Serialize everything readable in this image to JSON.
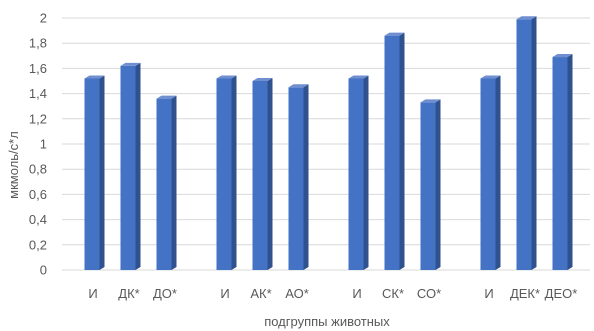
{
  "chart_data": {
    "type": "bar",
    "style": "3d-column",
    "xlabel": "подгруппы животных",
    "ylabel": "мкмоль/с*л",
    "ylim": [
      0,
      2
    ],
    "ytick_step": 0.2,
    "yticks": [
      "0",
      "0,2",
      "0,4",
      "0,6",
      "0,8",
      "1",
      "1,2",
      "1,4",
      "1,6",
      "1,8",
      "2"
    ],
    "grid": true,
    "legend": "none",
    "groups": [
      {
        "categories": [
          "И",
          "ДК*",
          "ДО*"
        ],
        "values": [
          1.52,
          1.62,
          1.36
        ]
      },
      {
        "categories": [
          "И",
          "АК*",
          "АО*"
        ],
        "values": [
          1.52,
          1.5,
          1.45
        ]
      },
      {
        "categories": [
          "И",
          "СК*",
          "СО*"
        ],
        "values": [
          1.52,
          1.86,
          1.33
        ]
      },
      {
        "categories": [
          "И",
          "ДЕК*",
          "ДЕО*"
        ],
        "values": [
          1.52,
          1.99,
          1.69
        ]
      }
    ],
    "colors": {
      "front": "#4472C4",
      "side": "#2F528F",
      "top": "#6F8FD0",
      "grid": "#D9D9D9",
      "text": "#595959"
    }
  }
}
